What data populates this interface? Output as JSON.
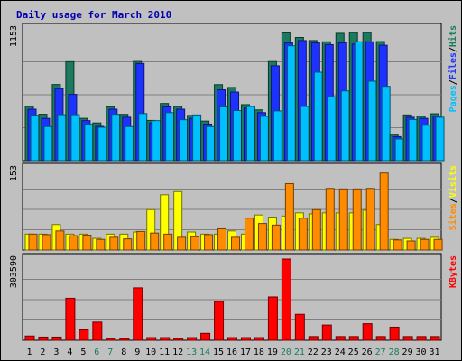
{
  "chart_data": {
    "type": "bar",
    "title": "Daily usage for March 2010",
    "days": [
      "1",
      "2",
      "3",
      "4",
      "5",
      "6",
      "7",
      "8",
      "9",
      "10",
      "11",
      "12",
      "13",
      "14",
      "15",
      "16",
      "17",
      "18",
      "19",
      "20",
      "21",
      "22",
      "23",
      "24",
      "25",
      "26",
      "27",
      "28",
      "29",
      "30",
      "31"
    ],
    "weekend_days": [
      "6",
      "7",
      "13",
      "14",
      "20",
      "21",
      "27",
      "28"
    ],
    "panels": [
      {
        "name": "hits-files-pages",
        "max_label": "1153",
        "ylim": [
          0,
          1153
        ],
        "axis_labels": [
          {
            "text": "Pages",
            "color": "#00bfff"
          },
          {
            "text": "/",
            "color": "#000000"
          },
          {
            "text": "Files",
            "color": "#1e32ff"
          },
          {
            "text": "/",
            "color": "#000000"
          },
          {
            "text": "Hits",
            "color": "#1c7a5e"
          }
        ],
        "series": [
          {
            "name": "Hits",
            "color": "#1c7a5e",
            "values": [
              474,
              406,
              666,
              866,
              370,
              330,
              472,
              405,
              868,
              352,
              500,
              474,
              396,
              346,
              665,
              640,
              490,
              444,
              867,
              1118,
              1078,
              1051,
              1040,
              1114,
              1121,
              1121,
              1042,
              230,
              400,
              389,
              410
            ]
          },
          {
            "name": "Files",
            "color": "#1e32ff",
            "values": [
              450,
              370,
              630,
              580,
              350,
              300,
              450,
              380,
              850,
              330,
              470,
              450,
              370,
              320,
              620,
              600,
              460,
              420,
              830,
              1030,
              1051,
              1030,
              1015,
              1031,
              1020,
              1040,
              1010,
              210,
              380,
              370,
              390
            ]
          },
          {
            "name": "Pages",
            "color": "#00bfff",
            "values": [
              397,
              298,
              402,
              402,
              318,
              292,
              405,
              298,
              412,
              350,
              420,
              358,
              400,
              298,
              470,
              438,
              474,
              388,
              435,
              1005,
              474,
              774,
              560,
              610,
              1040,
              695,
              650,
              190,
              360,
              310,
              380
            ]
          }
        ]
      },
      {
        "name": "visits-sites",
        "max_label": "153",
        "ylim": [
          0,
          153
        ],
        "axis_labels": [
          {
            "text": "Sites",
            "color": "#ff8c00"
          },
          {
            "text": "/",
            "color": "#000000"
          },
          {
            "text": "Visits",
            "color": "#ffff00"
          }
        ],
        "series": [
          {
            "name": "Visits",
            "color": "#ffff00",
            "values": [
              30,
              30,
              48,
              30,
              30,
              22,
              30,
              30,
              34,
              76,
              104,
              110,
              34,
              30,
              30,
              36,
              30,
              66,
              62,
              64,
              70,
              68,
              70,
              70,
              70,
              75,
              48,
              20,
              22,
              22,
              24
            ]
          },
          {
            "name": "Sites",
            "color": "#ff8c00",
            "values": [
              30,
              29,
              36,
              27,
              28,
              20,
              24,
              21,
              35,
              32,
              30,
              24,
              25,
              29,
              40,
              24,
              60,
              50,
              47,
              125,
              60,
              76,
              116,
              115,
              115,
              116,
              145,
              19,
              17,
              20,
              20
            ]
          }
        ]
      },
      {
        "name": "kbytes",
        "max_label": "303590",
        "ylim": [
          0,
          303590
        ],
        "axis_labels": [
          {
            "text": "KBytes",
            "color": "#ff0000"
          }
        ],
        "series": [
          {
            "name": "KBytes",
            "color": "#ff0000",
            "values": [
              16000,
              12000,
              12000,
              157000,
              39000,
              68000,
              6500,
              6500,
              196000,
              10000,
              10000,
              6500,
              10000,
              26000,
              145000,
              10000,
              10000,
              10000,
              162000,
              303590,
              97000,
              14000,
              57000,
              14000,
              14000,
              62000,
              14000,
              49000,
              14000,
              14000,
              14000
            ]
          }
        ]
      }
    ],
    "grid": true
  }
}
